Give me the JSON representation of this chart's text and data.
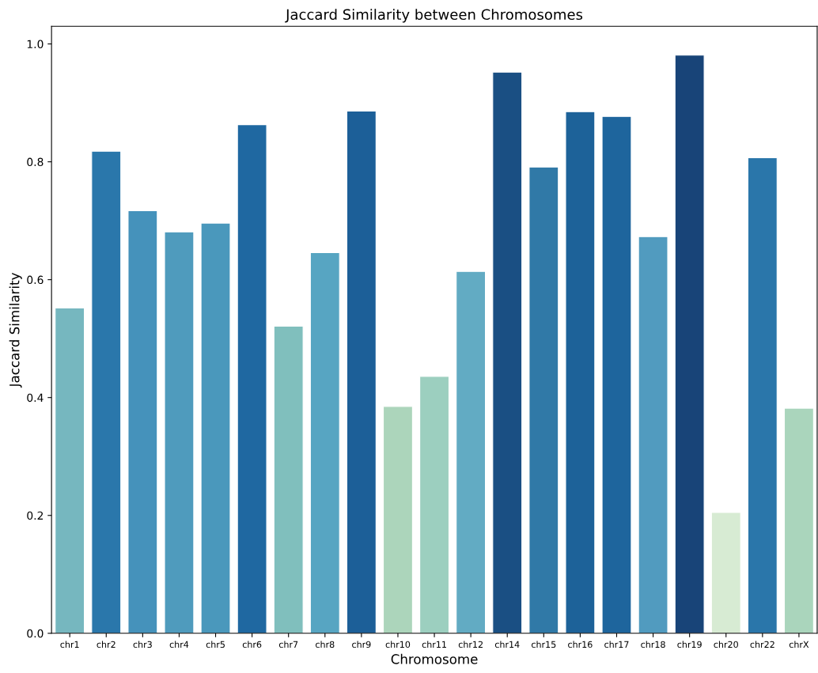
{
  "chart_data": {
    "type": "bar",
    "title": "Jaccard Similarity between Chromosomes",
    "xlabel": "Chromosome",
    "ylabel": "Jaccard Similarity",
    "categories": [
      "chr1",
      "chr2",
      "chr3",
      "chr4",
      "chr5",
      "chr6",
      "chr7",
      "chr8",
      "chr9",
      "chr10",
      "chr11",
      "chr12",
      "chr14",
      "chr15",
      "chr16",
      "chr17",
      "chr18",
      "chr19",
      "chr20",
      "chr22",
      "chrX"
    ],
    "values": [
      0.552,
      0.818,
      0.717,
      0.681,
      0.696,
      0.863,
      0.521,
      0.646,
      0.886,
      0.385,
      0.436,
      0.614,
      0.952,
      0.791,
      0.885,
      0.877,
      0.673,
      0.981,
      0.205,
      0.807,
      0.382
    ],
    "colors": [
      "#76b7bf",
      "#2a77ab",
      "#4592bb",
      "#4f9bbd",
      "#4a98bc",
      "#1f68a1",
      "#80bfbd",
      "#57a5c2",
      "#1c5f98",
      "#acd5bb",
      "#9ccfbf",
      "#62abc3",
      "#1a4f83",
      "#3079a7",
      "#1d6299",
      "#1e659d",
      "#519bbf",
      "#184478",
      "#d7ebd3",
      "#2a76aa",
      "#aad5bc"
    ],
    "ylim": [
      0,
      1.03
    ],
    "yticks": [
      {
        "value": 0,
        "label": "0.0"
      },
      {
        "value": 0.2,
        "label": "0.2"
      },
      {
        "value": 0.4,
        "label": "0.4"
      },
      {
        "value": 0.6,
        "label": "0.6"
      },
      {
        "value": 0.8,
        "label": "0.8"
      },
      {
        "value": 1.0,
        "label": "1.0"
      }
    ],
    "grid": false,
    "legend": false
  }
}
